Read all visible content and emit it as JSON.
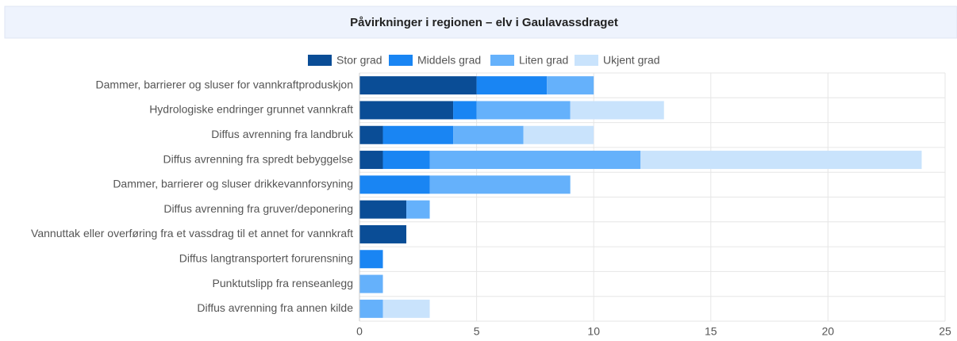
{
  "chart_data": {
    "type": "bar",
    "orientation": "horizontal",
    "stacked": true,
    "title": "Påvirkninger i regionen – elv i Gaulavassdraget",
    "categories": [
      "Dammer, barrierer og sluser for vannkraftproduskjon",
      "Hydrologiske endringer grunnet vannkraft",
      "Diffus avrenning fra landbruk",
      "Diffus avrenning fra spredt bebyggelse",
      "Dammer, barrierer og sluser drikkevannforsyning",
      "Diffus avrenning fra gruver/deponering",
      "Vannuttak eller overføring fra et vassdrag til et annet for vannkraft",
      "Diffus langtransportert forurensning",
      "Punktutslipp fra renseanlegg",
      "Diffus avrenning fra annen kilde"
    ],
    "series": [
      {
        "name": "Stor grad",
        "color": "#0a4d96",
        "values": [
          5,
          4,
          1,
          1,
          0,
          2,
          2,
          0,
          0,
          0
        ]
      },
      {
        "name": "Middels grad",
        "color": "#1985f3",
        "values": [
          3,
          1,
          3,
          2,
          3,
          0,
          0,
          1,
          0,
          0
        ]
      },
      {
        "name": "Liten grad",
        "color": "#65b1fb",
        "values": [
          2,
          4,
          3,
          9,
          6,
          1,
          0,
          0,
          1,
          1
        ]
      },
      {
        "name": "Ukjent grad",
        "color": "#c9e3fc",
        "values": [
          0,
          4,
          3,
          12,
          0,
          0,
          0,
          0,
          0,
          2
        ]
      }
    ],
    "xlim": [
      0,
      25
    ],
    "xticks": [
      0,
      5,
      10,
      15,
      20,
      25
    ],
    "grid": true,
    "legend": "top"
  }
}
